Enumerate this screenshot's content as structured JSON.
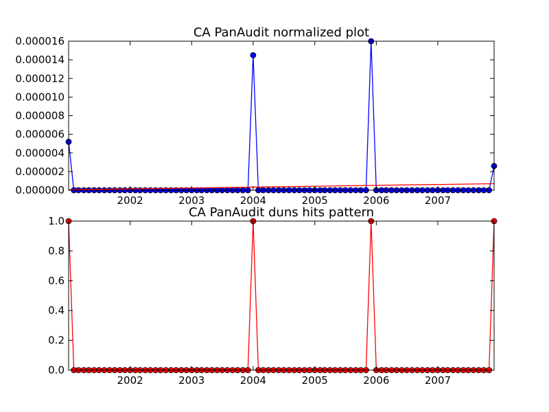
{
  "chart_data": [
    {
      "type": "line",
      "title": "CA PanAudit normalized plot",
      "xlabel": "",
      "ylabel": "",
      "xlim": [
        "2001-01-01",
        "2007-12-01"
      ],
      "ylim": [
        0,
        1.6e-05
      ],
      "x_tick_labels": [
        "2002",
        "2003",
        "2004",
        "2005",
        "2006",
        "2007"
      ],
      "y_tick_labels": [
        "0.000000",
        "0.000002",
        "0.000004",
        "0.000006",
        "0.000008",
        "0.000010",
        "0.000012",
        "0.000014",
        "0.000016"
      ],
      "grid": false,
      "legend": "none",
      "series": [
        {
          "style": "line-with-markers",
          "color": "#0000ff",
          "x": [
            "2001-01",
            "2001-02",
            "2001-03",
            "2001-04",
            "2001-05",
            "2001-06",
            "2001-07",
            "2001-08",
            "2001-09",
            "2001-10",
            "2001-11",
            "2001-12",
            "2002-01",
            "2002-02",
            "2002-03",
            "2002-04",
            "2002-05",
            "2002-06",
            "2002-07",
            "2002-08",
            "2002-09",
            "2002-10",
            "2002-11",
            "2002-12",
            "2003-01",
            "2003-02",
            "2003-03",
            "2003-04",
            "2003-05",
            "2003-06",
            "2003-07",
            "2003-08",
            "2003-09",
            "2003-10",
            "2003-11",
            "2003-12",
            "2004-01",
            "2004-02",
            "2004-03",
            "2004-04",
            "2004-05",
            "2004-06",
            "2004-07",
            "2004-08",
            "2004-09",
            "2004-10",
            "2004-11",
            "2004-12",
            "2005-01",
            "2005-02",
            "2005-03",
            "2005-04",
            "2005-05",
            "2005-06",
            "2005-07",
            "2005-08",
            "2005-09",
            "2005-10",
            "2005-11",
            "2005-12",
            "2006-01",
            "2006-02",
            "2006-03",
            "2006-04",
            "2006-05",
            "2006-06",
            "2006-07",
            "2006-08",
            "2006-09",
            "2006-10",
            "2006-11",
            "2006-12",
            "2007-01",
            "2007-02",
            "2007-03",
            "2007-04",
            "2007-05",
            "2007-06",
            "2007-07",
            "2007-08",
            "2007-09",
            "2007-10",
            "2007-11",
            "2007-12"
          ],
          "y": [
            5.2e-06,
            0,
            0,
            0,
            0,
            0,
            0,
            0,
            0,
            0,
            0,
            0,
            0,
            0,
            0,
            0,
            0,
            0,
            0,
            0,
            0,
            0,
            0,
            0,
            0,
            0,
            0,
            0,
            0,
            0,
            0,
            0,
            0,
            0,
            0,
            0,
            1.45e-05,
            0,
            0,
            0,
            0,
            0,
            0,
            0,
            0,
            0,
            0,
            0,
            0,
            0,
            0,
            0,
            0,
            0,
            0,
            0,
            0,
            0,
            0,
            1.6e-05,
            0,
            0,
            0,
            0,
            0,
            0,
            0,
            0,
            0,
            0,
            0,
            0,
            0,
            0,
            0,
            0,
            0,
            0,
            0,
            0,
            0,
            0,
            0,
            2.6e-06
          ]
        },
        {
          "style": "line",
          "color": "#ff0000",
          "x": [
            "2001-01",
            "2007-12"
          ],
          "y": [
            5e-08,
            7e-07
          ]
        }
      ]
    },
    {
      "type": "line",
      "title": "CA PanAudit duns hits pattern",
      "xlabel": "",
      "ylabel": "",
      "xlim": [
        "2001-01-01",
        "2007-12-01"
      ],
      "ylim": [
        0,
        1.0
      ],
      "x_tick_labels": [
        "2002",
        "2003",
        "2004",
        "2005",
        "2006",
        "2007"
      ],
      "y_tick_labels": [
        "0.0",
        "0.2",
        "0.4",
        "0.6",
        "0.8",
        "1.0"
      ],
      "grid": false,
      "legend": "none",
      "series": [
        {
          "style": "line-with-markers",
          "color": "#ff0000",
          "x": [
            "2001-01",
            "2001-02",
            "2001-03",
            "2001-04",
            "2001-05",
            "2001-06",
            "2001-07",
            "2001-08",
            "2001-09",
            "2001-10",
            "2001-11",
            "2001-12",
            "2002-01",
            "2002-02",
            "2002-03",
            "2002-04",
            "2002-05",
            "2002-06",
            "2002-07",
            "2002-08",
            "2002-09",
            "2002-10",
            "2002-11",
            "2002-12",
            "2003-01",
            "2003-02",
            "2003-03",
            "2003-04",
            "2003-05",
            "2003-06",
            "2003-07",
            "2003-08",
            "2003-09",
            "2003-10",
            "2003-11",
            "2003-12",
            "2004-01",
            "2004-02",
            "2004-03",
            "2004-04",
            "2004-05",
            "2004-06",
            "2004-07",
            "2004-08",
            "2004-09",
            "2004-10",
            "2004-11",
            "2004-12",
            "2005-01",
            "2005-02",
            "2005-03",
            "2005-04",
            "2005-05",
            "2005-06",
            "2005-07",
            "2005-08",
            "2005-09",
            "2005-10",
            "2005-11",
            "2005-12",
            "2006-01",
            "2006-02",
            "2006-03",
            "2006-04",
            "2006-05",
            "2006-06",
            "2006-07",
            "2006-08",
            "2006-09",
            "2006-10",
            "2006-11",
            "2006-12",
            "2007-01",
            "2007-02",
            "2007-03",
            "2007-04",
            "2007-05",
            "2007-06",
            "2007-07",
            "2007-08",
            "2007-09",
            "2007-10",
            "2007-11",
            "2007-12"
          ],
          "y": [
            1,
            0,
            0,
            0,
            0,
            0,
            0,
            0,
            0,
            0,
            0,
            0,
            0,
            0,
            0,
            0,
            0,
            0,
            0,
            0,
            0,
            0,
            0,
            0,
            0,
            0,
            0,
            0,
            0,
            0,
            0,
            0,
            0,
            0,
            0,
            0,
            1,
            0,
            0,
            0,
            0,
            0,
            0,
            0,
            0,
            0,
            0,
            0,
            0,
            0,
            0,
            0,
            0,
            0,
            0,
            0,
            0,
            0,
            0,
            1,
            0,
            0,
            0,
            0,
            0,
            0,
            0,
            0,
            0,
            0,
            0,
            0,
            0,
            0,
            0,
            0,
            0,
            0,
            0,
            0,
            0,
            0,
            0,
            1
          ]
        }
      ]
    }
  ]
}
